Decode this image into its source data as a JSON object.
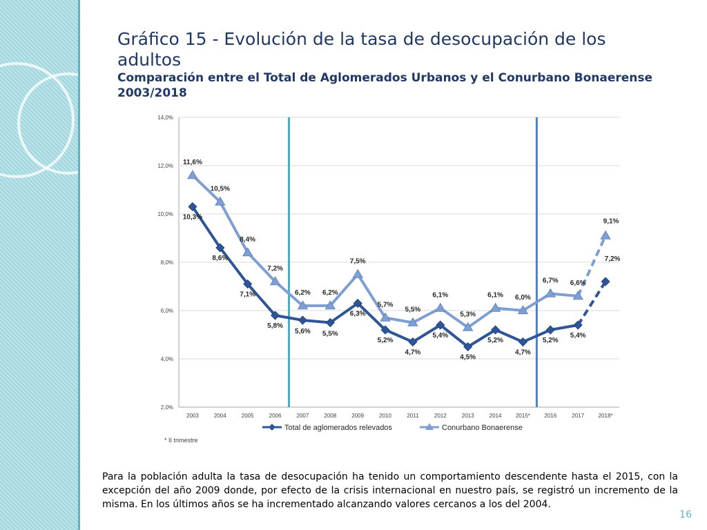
{
  "slide": {
    "title": "Gráfico 15 - Evolución de la tasa de desocupación de los adultos",
    "subtitle": "Comparación entre el Total de Aglomerados Urbanos y el Conurbano Bonaerense",
    "years": "2003/2018",
    "body": "Para la población adulta la tasa de desocupación ha tenido un comportamiento descendente hasta el 2015, con la excepción del año 2009 donde, por efecto de la crisis internacional en nuestro país, se registró un incremento de la misma.  En los últimos años se ha incrementado alcanzando valores cercanos a los del 2004.",
    "page_number": "16"
  },
  "chart_data": {
    "type": "line",
    "title": "",
    "xlabel": "",
    "ylabel": "",
    "categories": [
      "2003",
      "2004",
      "2005",
      "2006",
      "2007",
      "2008",
      "2009",
      "2010",
      "2011",
      "2012",
      "2013",
      "2014",
      "2015*",
      "2016",
      "2017",
      "2018*"
    ],
    "y_tick_labels": [
      "2,0%",
      "4,0%",
      "6,0%",
      "8,0%",
      "10,0%",
      "12,0%",
      "14,0%"
    ],
    "ylim": [
      2,
      14
    ],
    "grid": true,
    "legend_position": "bottom",
    "footnote": "* II trimestre",
    "vertical_markers": [
      {
        "between": [
          "2006",
          "2007"
        ],
        "color": "#4bacc6"
      },
      {
        "between": [
          "2015*",
          "2016"
        ],
        "color": "#4f81bd"
      }
    ],
    "series": [
      {
        "name": "Total de aglomerados relevados",
        "marker": "diamond",
        "color": "#2e5597",
        "values": [
          10.3,
          8.6,
          7.1,
          5.8,
          5.6,
          5.5,
          6.3,
          5.2,
          4.7,
          5.4,
          4.5,
          5.2,
          4.7,
          5.2,
          5.4,
          7.2
        ],
        "labels": [
          "10,3%",
          "8,6%",
          "7,1%",
          "5,8%",
          "5,6%",
          "5,5%",
          "6,3%",
          "5,2%",
          "4,7%",
          "5,4%",
          "4,5%",
          "5,2%",
          "4,7%",
          "5,2%",
          "5,4%",
          "7,2%"
        ],
        "dashed_last_segment": true
      },
      {
        "name": "Conurbano Bonaerense",
        "marker": "triangle",
        "color": "#7f9fd2",
        "values": [
          11.6,
          10.5,
          8.4,
          7.2,
          6.2,
          6.2,
          7.5,
          5.7,
          5.5,
          6.1,
          5.3,
          6.1,
          6.0,
          6.7,
          6.6,
          9.1
        ],
        "labels": [
          "11,6%",
          "10,5%",
          "8,4%",
          "7,2%",
          "6,2%",
          "6,2%",
          "7,5%",
          "5,7%",
          "5,5%",
          "6,1%",
          "5,3%",
          "6,1%",
          "6,0%",
          "6,7%",
          "6,6%",
          "9,1%"
        ],
        "dashed_last_segment": true
      }
    ]
  }
}
